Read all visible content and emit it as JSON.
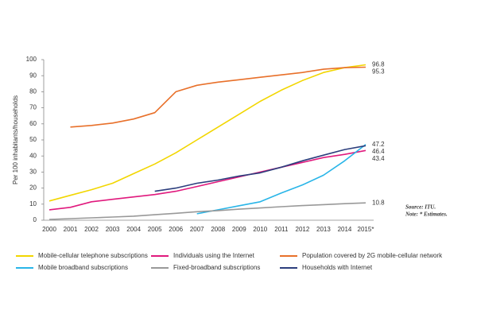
{
  "chart_data": {
    "type": "line",
    "y_label": "Per 100 inhabitants/households",
    "source": "Source: ITU.",
    "note": "Note: * Estimates.",
    "categories": [
      "2000",
      "2001",
      "2002",
      "2003",
      "2004",
      "2005",
      "2006",
      "2007",
      "2008",
      "2009",
      "2010",
      "2011",
      "2012",
      "2013",
      "2014",
      "2015*"
    ],
    "ylim": [
      0,
      100
    ],
    "yticks": [
      0,
      10,
      20,
      30,
      40,
      50,
      60,
      70,
      80,
      90,
      100
    ],
    "series": [
      {
        "name": "Mobile-cellular telephone subscriptions",
        "color": "#f2d600",
        "values": [
          12,
          15.5,
          19,
          23,
          29,
          35,
          42,
          50,
          58,
          66,
          74,
          81,
          87,
          92,
          95,
          96.8
        ]
      },
      {
        "name": "Individuals using the Internet",
        "color": "#e0197d",
        "values": [
          6.5,
          8,
          11.5,
          13,
          14.5,
          16,
          18,
          21,
          24,
          27,
          30,
          33,
          36,
          39,
          41,
          43.4
        ]
      },
      {
        "name": "Population covered by 2G mobile-cellular network",
        "color": "#e8702a",
        "values": [
          null,
          58,
          59,
          60.5,
          63,
          67,
          80,
          84,
          86,
          87.5,
          89,
          90.5,
          92,
          94,
          95,
          95.3
        ]
      },
      {
        "name": "Mobile broadband subscriptions",
        "color": "#29b5e8",
        "values": [
          null,
          null,
          null,
          null,
          null,
          null,
          null,
          4,
          6.5,
          9,
          11.5,
          17,
          22,
          28,
          37,
          47.2
        ]
      },
      {
        "name": "Fixed-broadband subscriptions",
        "color": "#999999",
        "values": [
          0.5,
          1,
          1.5,
          2,
          2.5,
          3.4,
          4.3,
          5.3,
          6,
          6.9,
          7.6,
          8.4,
          9.1,
          9.7,
          10.3,
          10.8
        ]
      },
      {
        "name": "Households with Internet",
        "color": "#2c3e7d",
        "values": [
          null,
          null,
          null,
          null,
          null,
          18,
          20,
          23,
          25,
          27.5,
          29.5,
          33,
          37,
          40.5,
          44,
          46.4
        ]
      }
    ]
  }
}
